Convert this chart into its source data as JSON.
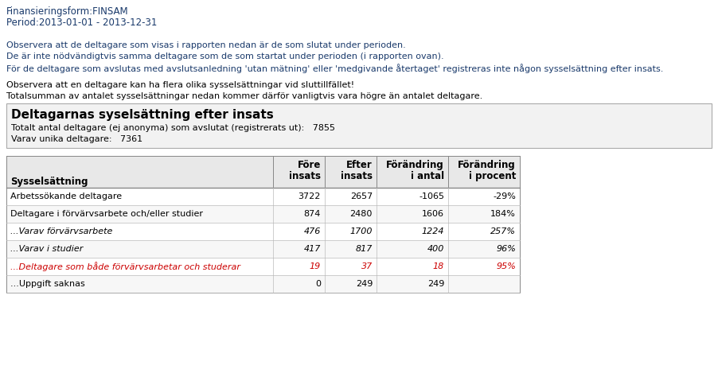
{
  "title_line1": "Finansieringsform:FINSAM",
  "title_line2": "Period:2013-01-01 - 2013-12-31",
  "note1": "Observera att de deltagare som visas i rapporten nedan är de som slutat under perioden.",
  "note2": "De är inte nödvändigtvis samma deltagare som de som startat under perioden (i rapporten ovan).",
  "note3": "För de deltagare som avslutas med avslutsanledning 'utan mätning' eller 'medgivande återtaget' registreras inte någon sysselsättning efter insats.",
  "note4": "Observera att en deltagare kan ha flera olika sysselsättningar vid sluttillfället!",
  "note5": "Totalsumman av antalet sysselsättningar nedan kommer därför vanligtvis vara högre än antalet deltagare.",
  "box_title": "Deltagarnas syselsättning efter insats",
  "box_line1": "Totalt antal deltagare (ej anonyma) som avslutat (registrerats ut):   7855",
  "box_line2": "Varav unika deltagare:   7361",
  "rows": [
    {
      "label": "Arbetssökande deltagare",
      "fore": "3722",
      "efter": "2657",
      "antal": "-1065",
      "procent": "-29%",
      "color": "#000000",
      "italic": false
    },
    {
      "label": "Deltagare i förvärvsarbete och/eller studier",
      "fore": "874",
      "efter": "2480",
      "antal": "1606",
      "procent": "184%",
      "color": "#000000",
      "italic": false
    },
    {
      "label": "...Varav förvärvsarbete",
      "fore": "476",
      "efter": "1700",
      "antal": "1224",
      "procent": "257%",
      "color": "#000000",
      "italic": true
    },
    {
      "label": "...Varav i studier",
      "fore": "417",
      "efter": "817",
      "antal": "400",
      "procent": "96%",
      "color": "#000000",
      "italic": true
    },
    {
      "label": "...Deltagare som både förvärvsarbetar och studerar",
      "fore": "19",
      "efter": "37",
      "antal": "18",
      "procent": "95%",
      "color": "#cc0000",
      "italic": true
    },
    {
      "label": "...Uppgift saknas",
      "fore": "0",
      "efter": "249",
      "antal": "249",
      "procent": "",
      "color": "#000000",
      "italic": false
    }
  ],
  "header_color": "#1a3a6b",
  "note_color": "#1a3a6b",
  "black": "#000000",
  "box_bg": "#f2f2f2",
  "box_border": "#aaaaaa",
  "table_header_bg": "#e8e8e8",
  "table_border": "#888888",
  "row_line_color": "#bbbbbb",
  "row_bg_even": "#ffffff",
  "row_bg_odd": "#f7f7f7",
  "bg_color": "#ffffff"
}
